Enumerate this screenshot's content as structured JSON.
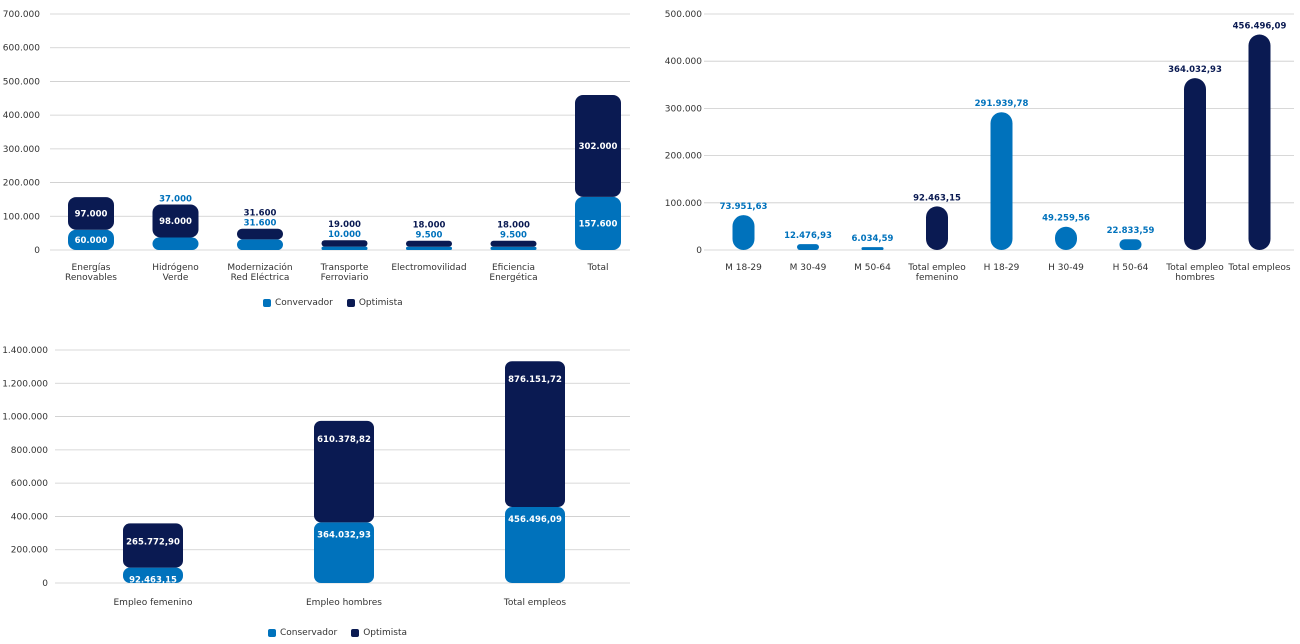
{
  "colors": {
    "conservador": "#0072BC",
    "optimista": "#0A1A52",
    "grid": "#CCCCCC"
  },
  "chart_data": [
    {
      "type": "bar",
      "stacked": true,
      "categories": [
        [
          "Energías",
          "Renovables"
        ],
        [
          "Hidrógeno",
          "Verde"
        ],
        [
          "Modernización",
          "Red Eléctrica"
        ],
        [
          "Transporte",
          "Ferroviario"
        ],
        [
          "Electromovilidad"
        ],
        [
          "Eficiencia",
          "Energética"
        ],
        [
          "Total"
        ]
      ],
      "series": [
        {
          "name": "Convervador",
          "values": [
            60000,
            37000,
            31600,
            10000,
            9500,
            9500,
            157600
          ],
          "labels": [
            "60.000",
            "37.000",
            "31.600",
            "10.000",
            "9.500",
            "9.500",
            "157.600"
          ]
        },
        {
          "name": "Optimista",
          "values": [
            97000,
            98000,
            31600,
            19000,
            18000,
            18000,
            302000
          ],
          "labels": [
            "97.000",
            "98.000",
            "31.600",
            "19.000",
            "18.000",
            "18.000",
            "302.000"
          ]
        }
      ],
      "ylim": [
        0,
        700000
      ],
      "yticks": [
        0,
        100000,
        200000,
        300000,
        400000,
        500000,
        600000,
        700000
      ],
      "ytick_labels": [
        "0",
        "100.000",
        "200.000",
        "300.000",
        "400.000",
        "500.000",
        "600.000",
        "700.000"
      ],
      "grid": true,
      "legend_position": "bottom-center"
    },
    {
      "type": "bar",
      "stacked": false,
      "categories": [
        [
          "M 18-29"
        ],
        [
          "M 30-49"
        ],
        [
          "M 50-64"
        ],
        [
          "Total empleo",
          "femenino"
        ],
        [
          "H 18-29"
        ],
        [
          "H 30-49"
        ],
        [
          "H 50-64"
        ],
        [
          "Total empleo",
          "hombres"
        ],
        [
          "Total empleos"
        ]
      ],
      "values": [
        73951.63,
        12476.93,
        6034.59,
        92463.15,
        291939.78,
        49259.56,
        22833.59,
        364032.93,
        456496.09
      ],
      "labels": [
        "73.951,63",
        "12.476,93",
        "6.034,59",
        "92.463,15",
        "291.939,78",
        "49.259,56",
        "22.833,59",
        "364.032,93",
        "456.496,09"
      ],
      "bar_colors": [
        "light",
        "light",
        "light",
        "dark",
        "light",
        "light",
        "light",
        "dark",
        "dark"
      ],
      "ylim": [
        0,
        500000
      ],
      "yticks": [
        0,
        100000,
        200000,
        300000,
        400000,
        500000
      ],
      "ytick_labels": [
        "0",
        "100.000",
        "200.000",
        "300.000",
        "400.000",
        "500.000"
      ],
      "grid": true
    },
    {
      "type": "bar",
      "stacked": true,
      "categories": [
        [
          "Empleo femenino"
        ],
        [
          "Empleo hombres"
        ],
        [
          "Total empleos"
        ]
      ],
      "series": [
        {
          "name": "Conservador",
          "values": [
            92463.15,
            364032.93,
            456496.09
          ],
          "labels": [
            "92.463,15",
            "364.032,93",
            "456.496,09"
          ]
        },
        {
          "name": "Optimista",
          "values": [
            265772.9,
            610378.82,
            876151.72
          ],
          "labels": [
            "265.772,90",
            "610.378,82",
            "876.151,72"
          ]
        }
      ],
      "ylim": [
        0,
        1400000
      ],
      "yticks": [
        0,
        200000,
        400000,
        600000,
        800000,
        1000000,
        1200000,
        1400000
      ],
      "ytick_labels": [
        "0",
        "200.000",
        "400.000",
        "600.000",
        "800.000",
        "1.000.000",
        "1.200.000",
        "1.400.000"
      ],
      "grid": true,
      "legend_position": "bottom-center"
    }
  ],
  "legends": {
    "chart1": {
      "conservador": "Convervador",
      "optimista": "Optimista"
    },
    "chart3": {
      "conservador": "Conservador",
      "optimista": "Optimista"
    }
  }
}
